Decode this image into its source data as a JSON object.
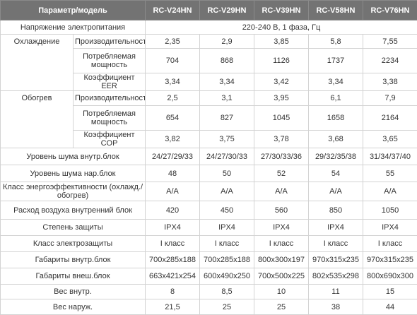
{
  "header": [
    "Параметр/модель",
    "RC-V24HN",
    "RC-V29HN",
    "RC-V39HN",
    "RC-V58HN",
    "RC-V76HN"
  ],
  "voltage": {
    "label": "Напряжение электропитания",
    "value": "220-240 В, 1 фаза, Гц"
  },
  "groups": [
    {
      "label": "Охлаждение",
      "rows": [
        {
          "label": "Производительность",
          "values": [
            "2,35",
            "2,9",
            "3,85",
            "5,8",
            "7,55"
          ]
        },
        {
          "label": "Потребляемая мощность",
          "values": [
            "704",
            "868",
            "1126",
            "1737",
            "2234"
          ]
        },
        {
          "label": "Коэффициент EER",
          "values": [
            "3,34",
            "3,34",
            "3,42",
            "3,34",
            "3,38"
          ]
        }
      ]
    },
    {
      "label": "Обогрев",
      "rows": [
        {
          "label": "Производительность",
          "values": [
            "2,5",
            "3,1",
            "3,95",
            "6,1",
            "7,9"
          ]
        },
        {
          "label": "Потребляемая мощность",
          "values": [
            "654",
            "827",
            "1045",
            "1658",
            "2164"
          ]
        },
        {
          "label": "Коэффициент COP",
          "values": [
            "3,82",
            "3,75",
            "3,78",
            "3,68",
            "3,65"
          ]
        }
      ]
    }
  ],
  "rows": [
    {
      "label": "Уровень шума внутр.блок",
      "values": [
        "24/27/29/33",
        "24/27/30/33",
        "27/30/33/36",
        "29/32/35/38",
        "31/34/37/40"
      ]
    },
    {
      "label": "Уровень шума нар.блок",
      "values": [
        "48",
        "50",
        "52",
        "54",
        "55"
      ]
    },
    {
      "label": "Класс энергоэффективности (охлажд./обогрев)",
      "values": [
        "A/A",
        "A/A",
        "A/A",
        "A/A",
        "A/A"
      ]
    },
    {
      "label": "Расход воздуха внутренний блок",
      "values": [
        "420",
        "450",
        "560",
        "850",
        "1050"
      ]
    },
    {
      "label": "Степень защиты",
      "values": [
        "IPX4",
        "IPX4",
        "IPX4",
        "IPX4",
        "IPX4"
      ]
    },
    {
      "label": "Класс электрозащиты",
      "values": [
        "I класс",
        "I класс",
        "I класс",
        "I класс",
        "I класс"
      ]
    },
    {
      "label": "Габариты внутр.блок",
      "values": [
        "700x285x188",
        "700x285x188",
        "800x300x197",
        "970x315x235",
        "970x315x235"
      ]
    },
    {
      "label": "Габариты внеш.блок",
      "values": [
        "663x421x254",
        "600x490x250",
        "700x500x225",
        "802x535x298",
        "800x690x300"
      ]
    },
    {
      "label": "Вес внутр.",
      "values": [
        "8",
        "8,5",
        "10",
        "11",
        "15"
      ]
    },
    {
      "label": "Вес наруж.",
      "values": [
        "21,5",
        "25",
        "25",
        "38",
        "44"
      ]
    }
  ]
}
